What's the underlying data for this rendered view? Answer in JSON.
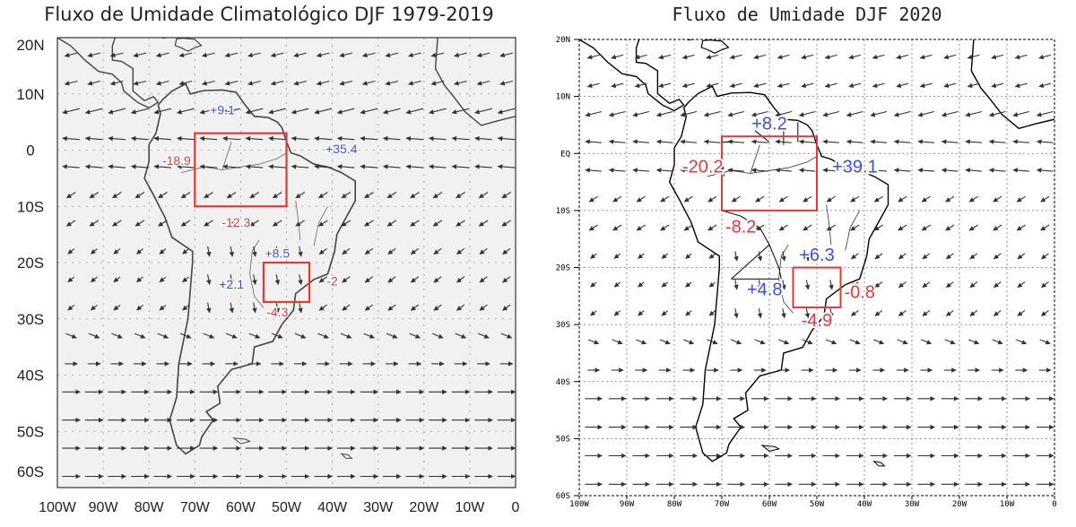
{
  "colors": {
    "positive": "#3a4fe0",
    "negative": "#e03a3a",
    "box": "#e03a3a",
    "land": "#111111",
    "vector": "#333333"
  },
  "panels": [
    {
      "id": "left",
      "title": "Fluxo de Umidade Climatológico DJF  1979-2019",
      "lat_labels": [
        "20N",
        "10N",
        "0",
        "10S",
        "20S",
        "30S",
        "40S",
        "50S",
        "60S"
      ],
      "lon_labels": [
        "100W",
        "90W",
        "80W",
        "70W",
        "60W",
        "50W",
        "40W",
        "30W",
        "20W",
        "10W",
        "0"
      ],
      "boxes": [
        {
          "lon_min": -70,
          "lon_max": -50,
          "lat_min": -10,
          "lat_max": 3
        },
        {
          "lon_min": -55,
          "lon_max": -45,
          "lat_min": -27,
          "lat_max": -20
        }
      ],
      "flux_values": [
        {
          "text": "+9.1",
          "lon": -64,
          "lat": 7,
          "sign": "positive"
        },
        {
          "text": "-18.9",
          "lon": -74,
          "lat": -2,
          "sign": "negative"
        },
        {
          "text": "+35.4",
          "lon": -38,
          "lat": 0,
          "sign": "positive"
        },
        {
          "text": "-12.3",
          "lon": -61,
          "lat": -13,
          "sign": "negative"
        },
        {
          "text": "+8.5",
          "lon": -52,
          "lat": -18.5,
          "sign": "positive"
        },
        {
          "text": "+2.1",
          "lon": -62,
          "lat": -24,
          "sign": "positive"
        },
        {
          "text": "-2",
          "lon": -40,
          "lat": -23.5,
          "sign": "negative"
        },
        {
          "text": "-4.3",
          "lon": -52,
          "lat": -29,
          "sign": "negative"
        }
      ]
    },
    {
      "id": "right",
      "title": "Fluxo de Umidade DJF 2020",
      "lat_labels": [
        "20N",
        "10N",
        "EQ",
        "10S",
        "20S",
        "30S",
        "40S",
        "50S",
        "60S"
      ],
      "lon_labels": [
        "100W",
        "90W",
        "80W",
        "70W",
        "60W",
        "50W",
        "40W",
        "30W",
        "20W",
        "10W",
        "0"
      ],
      "boxes": [
        {
          "lon_min": -70,
          "lon_max": -50,
          "lat_min": -10,
          "lat_max": 3
        },
        {
          "lon_min": -55,
          "lon_max": -45,
          "lat_min": -27,
          "lat_max": -20
        }
      ],
      "flux_values": [
        {
          "text": "+8.2",
          "lon": -60,
          "lat": 5,
          "sign": "positive"
        },
        {
          "text": "-20.2",
          "lon": -74,
          "lat": -2.5,
          "sign": "negative"
        },
        {
          "text": "+39.1",
          "lon": -42,
          "lat": -2.5,
          "sign": "positive"
        },
        {
          "text": "-8.2",
          "lon": -66,
          "lat": -13,
          "sign": "negative"
        },
        {
          "text": "+6.3",
          "lon": -50,
          "lat": -18,
          "sign": "positive"
        },
        {
          "text": "+4.8",
          "lon": -61,
          "lat": -24,
          "sign": "positive"
        },
        {
          "text": "-0.8",
          "lon": -41,
          "lat": -24.5,
          "sign": "negative"
        },
        {
          "text": "-4.9",
          "lon": -50,
          "lat": -29.5,
          "sign": "negative"
        }
      ]
    }
  ]
}
